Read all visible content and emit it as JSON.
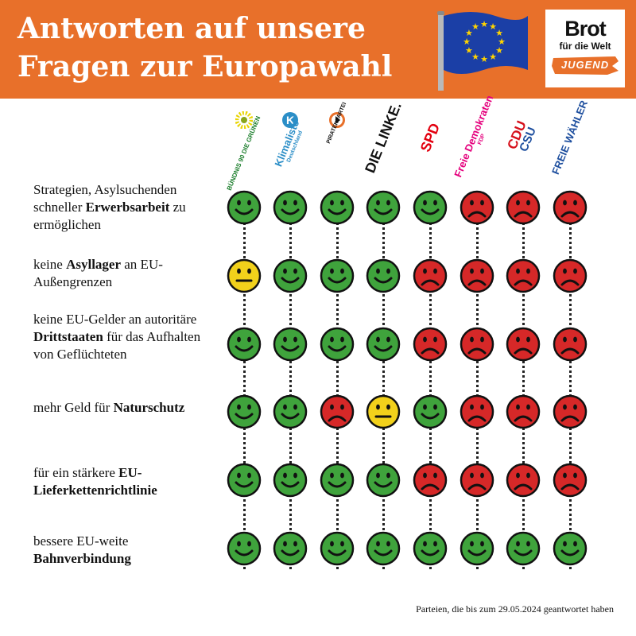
{
  "header": {
    "title_line1": "Antworten auf unsere",
    "title_line2": "Fragen zur Europawahl",
    "flag_icon": "eu-flag-icon",
    "logo": {
      "word": "Brot",
      "sub": "für die Welt",
      "badge": "JUGEND"
    }
  },
  "colors": {
    "banner": "#e8702a",
    "yes": "#3fa33c",
    "neutral": "#f2d11b",
    "no": "#d62828"
  },
  "parties": [
    {
      "name": "BÜNDNIS 90 DIE GRÜNEN",
      "color": "#1a7d2a",
      "icon": "sunflower-icon"
    },
    {
      "name": "Klimaliste",
      "sub": "Deutschland",
      "color": "#2b8ec7",
      "icon": "klimaliste-k-icon"
    },
    {
      "name": "PIRATENPARTEI",
      "color": "#e8702a",
      "icon": "pirate-sail-icon"
    },
    {
      "name": "DIE LINKE.",
      "color": "#111111",
      "icon": ""
    },
    {
      "name": "SPD",
      "color": "#e3000f",
      "icon": ""
    },
    {
      "name": "Freie Demokraten",
      "sub": "FDP",
      "color": "#e5007d",
      "icon": ""
    },
    {
      "name": "CDU",
      "sub": "CSU",
      "color": "#d6101b",
      "icon": ""
    },
    {
      "name": "FREIE WÄHLER",
      "color": "#1d4e9e",
      "icon": ""
    }
  ],
  "questions": [
    {
      "text_before": "Strategien, Asylsuchenden schneller ",
      "bold": "Erwerbsarbeit",
      "text_after": " zu ermöglichen",
      "answers": [
        "yes",
        "yes",
        "yes",
        "yes",
        "yes",
        "no",
        "no",
        "no"
      ]
    },
    {
      "text_before": "keine ",
      "bold": "Asyllager",
      "text_after": " an EU-Außengrenzen",
      "answers": [
        "neutral",
        "yes",
        "yes",
        "yes",
        "no",
        "no",
        "no",
        "no"
      ]
    },
    {
      "text_before": "keine EU-Gelder an autoritäre ",
      "bold": "Drittstaaten",
      "text_after": " für das Aufhalten von Geflüchteten",
      "answers": [
        "yes",
        "yes",
        "yes",
        "yes",
        "no",
        "no",
        "no",
        "no"
      ]
    },
    {
      "text_before": "mehr Geld für ",
      "bold": "Naturschutz",
      "text_after": "",
      "answers": [
        "yes",
        "yes",
        "no",
        "neutral",
        "yes",
        "no",
        "no",
        "no"
      ]
    },
    {
      "text_before": "für ein stärkere ",
      "bold": "EU-Lieferkettenrichtlinie",
      "text_after": "",
      "answers": [
        "yes",
        "yes",
        "yes",
        "yes",
        "no",
        "no",
        "no",
        "no"
      ]
    },
    {
      "text_before": "bessere EU-weite ",
      "bold": "Bahnverbindung",
      "text_after": "",
      "answers": [
        "yes",
        "yes",
        "yes",
        "yes",
        "yes",
        "yes",
        "yes",
        "yes"
      ]
    }
  ],
  "footer": "Parteien, die bis zum 29.05.2024 geantwortet haben"
}
